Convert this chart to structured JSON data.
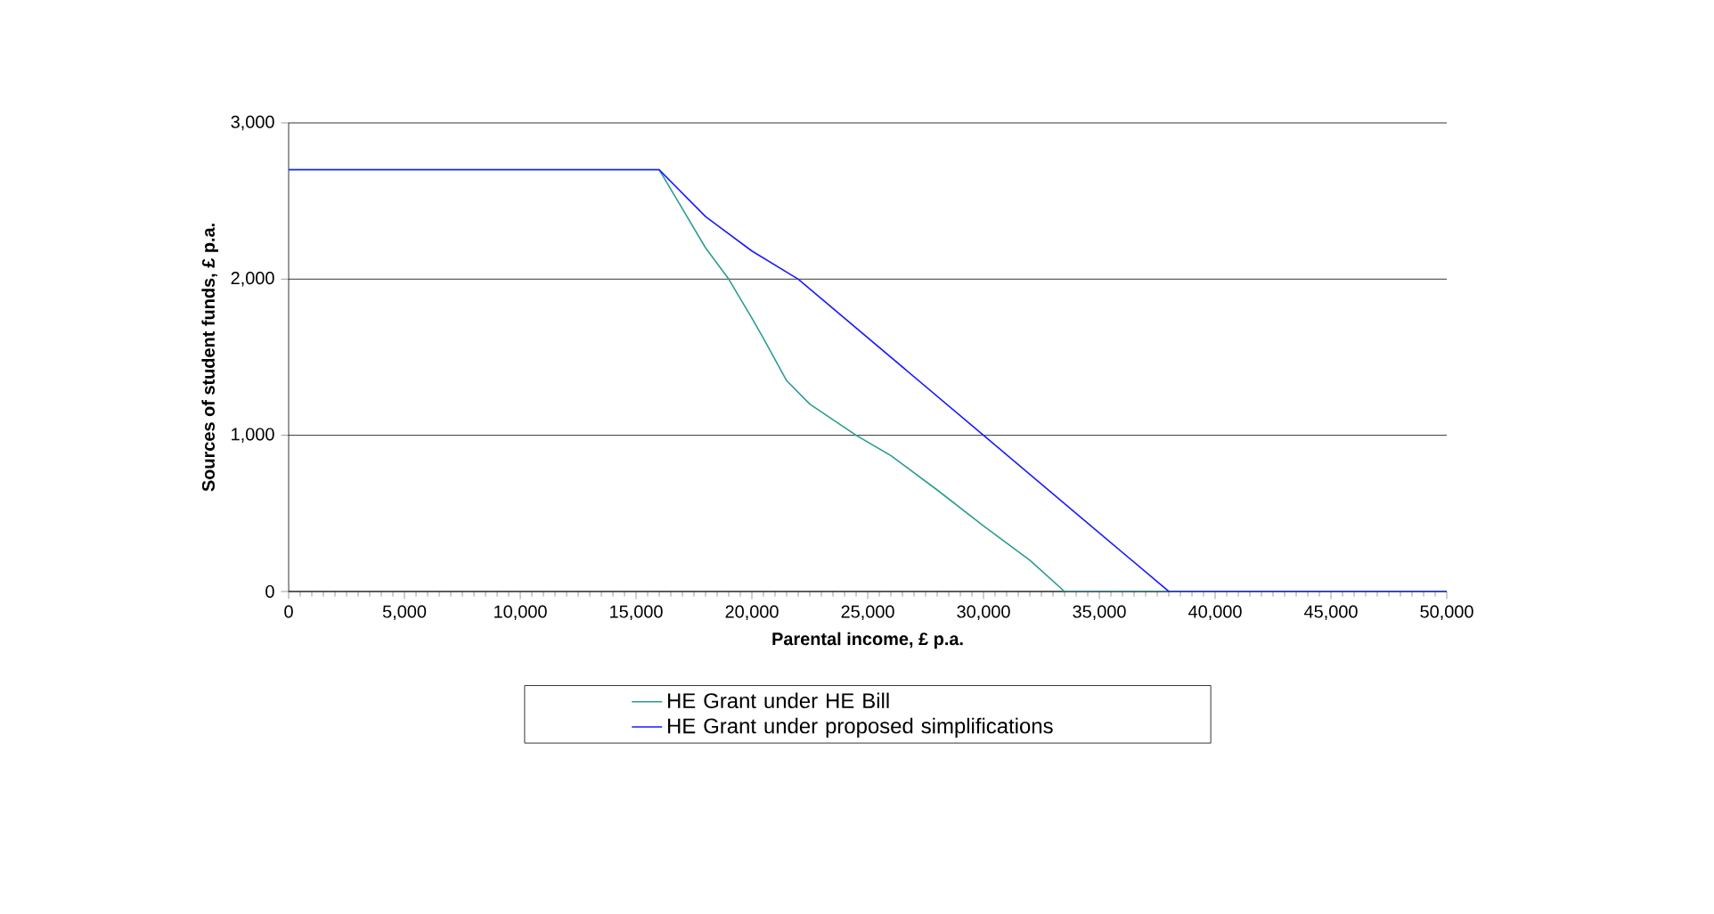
{
  "chart_data": {
    "type": "line",
    "xlabel": "Parental income, £ p.a.",
    "ylabel": "Sources of student funds, £ p.a.",
    "xlim": [
      0,
      50000
    ],
    "ylim": [
      0,
      3000
    ],
    "xticks": [
      {
        "value": 0,
        "label": "0"
      },
      {
        "value": 5000,
        "label": "5,000"
      },
      {
        "value": 10000,
        "label": "10,000"
      },
      {
        "value": 15000,
        "label": "15,000"
      },
      {
        "value": 20000,
        "label": "20,000"
      },
      {
        "value": 25000,
        "label": "25,000"
      },
      {
        "value": 30000,
        "label": "30,000"
      },
      {
        "value": 35000,
        "label": "35,000"
      },
      {
        "value": 40000,
        "label": "40,000"
      },
      {
        "value": 45000,
        "label": "45,000"
      },
      {
        "value": 50000,
        "label": "50,000"
      }
    ],
    "yticks": [
      {
        "value": 0,
        "label": "0"
      },
      {
        "value": 1000,
        "label": "1,000"
      },
      {
        "value": 2000,
        "label": "2,000"
      },
      {
        "value": 3000,
        "label": "3,000"
      }
    ],
    "grid": "y",
    "legend": "bottom",
    "marker": "none",
    "line_style": "solid",
    "series": [
      {
        "name": "HE Grant under HE Bill",
        "color": "#2a9d8f",
        "x": [
          0,
          16000,
          17000,
          18000,
          19000,
          20000,
          20500,
          21500,
          22500,
          23500,
          24500,
          26000,
          28000,
          30000,
          32000,
          33500,
          50000
        ],
        "values": [
          2700,
          2700,
          2450,
          2200,
          2000,
          1750,
          1620,
          1350,
          1200,
          1100,
          1000,
          870,
          650,
          420,
          200,
          0,
          0
        ]
      },
      {
        "name": "HE Grant under proposed simplifications",
        "color": "#1a1aff",
        "x": [
          0,
          16000,
          18000,
          20000,
          22000,
          26000,
          30000,
          34000,
          38000,
          50000
        ],
        "values": [
          2700,
          2700,
          2400,
          2180,
          2000,
          1500,
          1000,
          500,
          0,
          0
        ]
      }
    ]
  }
}
